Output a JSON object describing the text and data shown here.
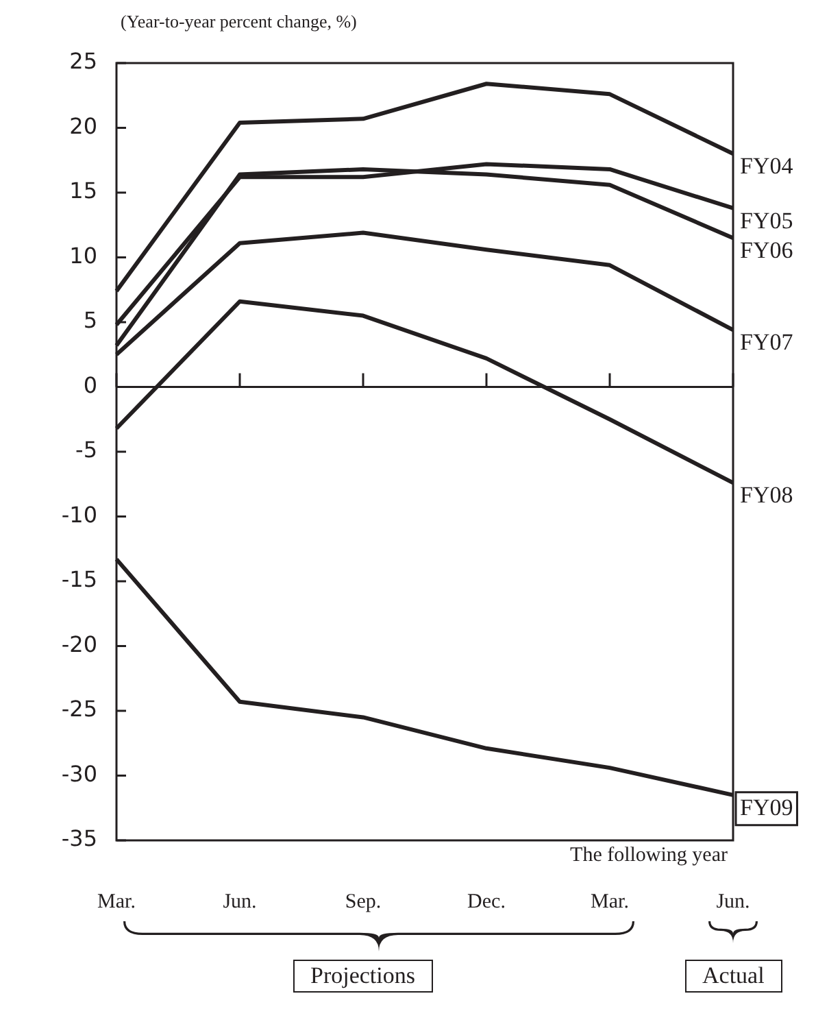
{
  "chart_data": {
    "type": "line",
    "ylabel": "(Year-to-year percent change, %)",
    "categories": [
      "Mar.",
      "Jun.",
      "Sep.",
      "Dec.",
      "Mar.",
      "Jun."
    ],
    "ylim": [
      -35,
      25
    ],
    "yticks": [
      -35,
      -30,
      -25,
      -20,
      -15,
      -10,
      -5,
      0,
      5,
      10,
      15,
      20,
      25
    ],
    "legend": false,
    "marker": "none",
    "line_style": "solid",
    "series": [
      {
        "name": "FY04",
        "color": "#231f20",
        "values": [
          7.4,
          20.4,
          20.7,
          23.4,
          22.6,
          18.0
        ]
      },
      {
        "name": "FY05",
        "color": "#231f20",
        "values": [
          4.8,
          16.2,
          16.2,
          17.2,
          16.8,
          13.8
        ]
      },
      {
        "name": "FY06",
        "color": "#231f20",
        "values": [
          3.2,
          16.4,
          16.8,
          16.4,
          15.6,
          11.5
        ]
      },
      {
        "name": "FY07",
        "color": "#231f20",
        "values": [
          2.5,
          11.1,
          11.9,
          10.6,
          9.4,
          4.4
        ]
      },
      {
        "name": "FY08",
        "color": "#231f20",
        "values": [
          -3.2,
          6.6,
          5.5,
          2.2,
          -2.5,
          -7.4
        ]
      },
      {
        "name": "FY09",
        "color": "#231f20",
        "values": [
          -13.3,
          -24.3,
          -25.5,
          -27.9,
          -29.4,
          -31.5
        ]
      }
    ],
    "annotations": [
      "The following year",
      "Projections",
      "Actual"
    ]
  }
}
